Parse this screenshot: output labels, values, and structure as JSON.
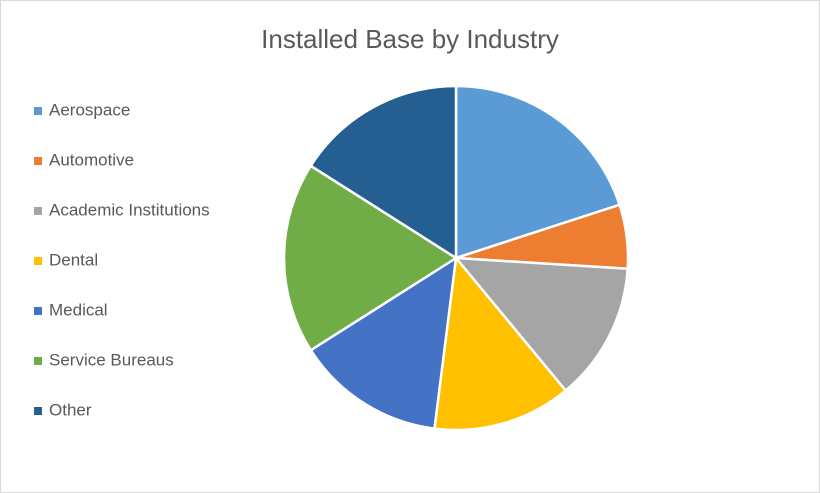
{
  "chart_data": {
    "type": "pie",
    "title": "Installed Base by Industry",
    "categories": [
      "Aerospace",
      "Automotive",
      "Academic Institutions",
      "Dental",
      "Medical",
      "Service Bureaus",
      "Other"
    ],
    "values": [
      20,
      6,
      13,
      13,
      14,
      18,
      16
    ],
    "colors": [
      "#5b9bd5",
      "#ed7d31",
      "#a5a5a5",
      "#ffc000",
      "#4472c4",
      "#70ad47",
      "#255e91"
    ],
    "legend": "left"
  }
}
